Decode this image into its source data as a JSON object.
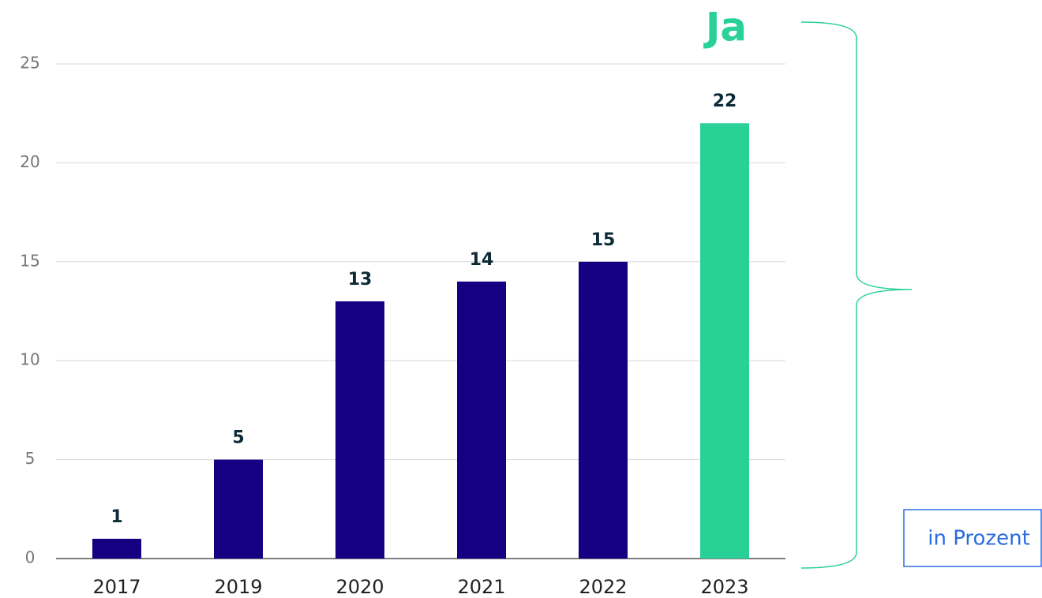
{
  "chart_data": {
    "type": "bar",
    "categories": [
      "2017",
      "2019",
      "2020",
      "2021",
      "2022",
      "2023"
    ],
    "values": [
      1,
      5,
      13,
      14,
      15,
      22
    ],
    "colors": [
      "#140080",
      "#140080",
      "#140080",
      "#140080",
      "#140080",
      "#29d197"
    ],
    "ylim": [
      0,
      25
    ],
    "yticks": [
      0,
      5,
      10,
      15,
      20,
      25
    ],
    "grid": true,
    "annotations": [
      "Ja",
      "in Prozent"
    ]
  }
}
